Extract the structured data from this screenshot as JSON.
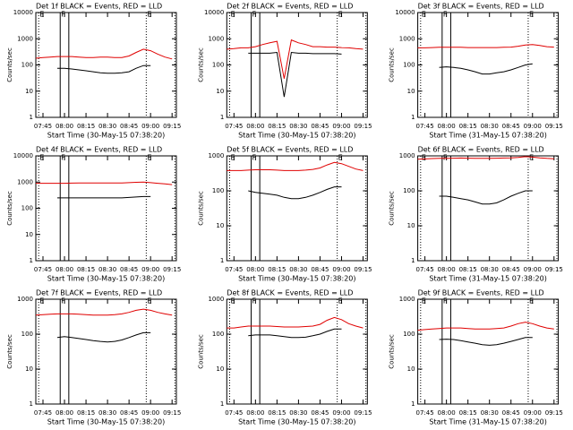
{
  "chart_data": [
    {
      "type": "line",
      "title": "Det 1f BLACK = Events, RED = LLD",
      "xlabel": "Start Time (30-May-15 07:38:20)",
      "ylabel": "Counts/sec",
      "scale": "log",
      "x": [
        "07:40",
        "07:45",
        "07:50",
        "07:55",
        "08:00",
        "08:05",
        "08:10",
        "08:15",
        "08:20",
        "08:25",
        "08:30",
        "08:35",
        "08:40",
        "08:45",
        "08:50",
        "08:55",
        "09:00",
        "09:05",
        "09:10",
        "09:15"
      ],
      "xlim": [
        "07:40",
        "09:18"
      ],
      "xticks": [
        "07:45",
        "08:00",
        "08:15",
        "08:30",
        "08:45",
        "09:00",
        "09:15"
      ],
      "ylim": [
        1,
        10000
      ],
      "yticks": [
        1,
        10,
        100,
        1000,
        10000
      ],
      "vlines": [
        {
          "x": "07:42",
          "label": "E",
          "style": "dotted"
        },
        {
          "x": "07:57",
          "label": "F",
          "style": "solid"
        },
        {
          "x": "08:03",
          "style": "solid"
        },
        {
          "x": "08:57",
          "label": "E",
          "style": "dotted"
        },
        {
          "x": "09:17",
          "style": "dotted"
        }
      ],
      "series": [
        {
          "color": "#000000",
          "values": [
            null,
            null,
            null,
            75,
            75,
            70,
            65,
            60,
            55,
            50,
            48,
            48,
            50,
            55,
            75,
            95,
            95,
            null,
            null,
            null
          ]
        },
        {
          "color": "#e00000",
          "values": [
            180,
            190,
            200,
            210,
            210,
            210,
            200,
            190,
            190,
            200,
            200,
            190,
            190,
            220,
            300,
            400,
            350,
            260,
            200,
            170
          ]
        }
      ]
    },
    {
      "type": "line",
      "title": "Det 2f BLACK = Events, RED = LLD",
      "xlabel": "Start Time (30-May-15 07:38:20)",
      "ylabel": "Counts/sec",
      "scale": "log",
      "x": [
        "07:40",
        "07:45",
        "07:50",
        "07:55",
        "08:00",
        "08:05",
        "08:10",
        "08:15",
        "08:20",
        "08:25",
        "08:30",
        "08:35",
        "08:40",
        "08:45",
        "08:50",
        "08:55",
        "09:00",
        "09:05",
        "09:10",
        "09:15"
      ],
      "xlim": [
        "07:40",
        "09:18"
      ],
      "xticks": [
        "07:45",
        "08:00",
        "08:15",
        "08:30",
        "08:45",
        "09:00",
        "09:15"
      ],
      "ylim": [
        1,
        10000
      ],
      "yticks": [
        1,
        10,
        100,
        1000,
        10000
      ],
      "vlines": [
        {
          "x": "07:42",
          "label": "E",
          "style": "dotted"
        },
        {
          "x": "07:57",
          "label": "F",
          "style": "solid"
        },
        {
          "x": "08:03",
          "style": "solid"
        },
        {
          "x": "08:57",
          "label": "E",
          "style": "dotted"
        },
        {
          "x": "09:17",
          "style": "dotted"
        }
      ],
      "series": [
        {
          "color": "#000000",
          "values": [
            null,
            null,
            null,
            280,
            280,
            280,
            280,
            300,
            6,
            300,
            280,
            280,
            270,
            270,
            270,
            270,
            260,
            null,
            null,
            null
          ]
        },
        {
          "color": "#e00000",
          "values": [
            400,
            420,
            450,
            450,
            500,
            600,
            700,
            800,
            30,
            900,
            700,
            600,
            500,
            500,
            480,
            480,
            460,
            450,
            420,
            400
          ]
        }
      ]
    },
    {
      "type": "line",
      "title": "Det 3f BLACK = Events, RED = LLD",
      "xlabel": "Start Time (31-May-15 07:38:20)",
      "ylabel": "Counts/sec",
      "scale": "log",
      "x": [
        "07:40",
        "07:45",
        "07:50",
        "07:55",
        "08:00",
        "08:05",
        "08:10",
        "08:15",
        "08:20",
        "08:25",
        "08:30",
        "08:35",
        "08:40",
        "08:45",
        "08:50",
        "08:55",
        "09:00",
        "09:05",
        "09:10",
        "09:15"
      ],
      "xlim": [
        "07:40",
        "09:18"
      ],
      "xticks": [
        "07:45",
        "08:00",
        "08:15",
        "08:30",
        "08:45",
        "09:00",
        "09:15"
      ],
      "ylim": [
        1,
        10000
      ],
      "yticks": [
        1,
        10,
        100,
        1000,
        10000
      ],
      "vlines": [
        {
          "x": "07:42",
          "label": "E",
          "style": "dotted"
        },
        {
          "x": "07:57",
          "label": "F",
          "style": "solid"
        },
        {
          "x": "08:03",
          "style": "solid"
        },
        {
          "x": "08:57",
          "label": "E",
          "style": "dotted"
        },
        {
          "x": "09:17",
          "style": "dotted"
        }
      ],
      "series": [
        {
          "color": "#000000",
          "values": [
            null,
            null,
            null,
            80,
            85,
            80,
            75,
            65,
            55,
            45,
            45,
            50,
            55,
            65,
            80,
            100,
            110,
            null,
            null,
            null
          ]
        },
        {
          "color": "#e00000",
          "values": [
            450,
            450,
            460,
            470,
            470,
            470,
            470,
            460,
            460,
            460,
            460,
            460,
            470,
            480,
            520,
            580,
            600,
            550,
            500,
            480
          ]
        }
      ]
    },
    {
      "type": "line",
      "title": "Det 4f BLACK = Events, RED = LLD",
      "xlabel": "Start Time (30-May-15 07:38:20)",
      "ylabel": "Counts/sec",
      "scale": "log",
      "x": [
        "07:40",
        "07:45",
        "07:50",
        "07:55",
        "08:00",
        "08:05",
        "08:10",
        "08:15",
        "08:20",
        "08:25",
        "08:30",
        "08:35",
        "08:40",
        "08:45",
        "08:50",
        "08:55",
        "09:00",
        "09:05",
        "09:10",
        "09:15"
      ],
      "xlim": [
        "07:40",
        "09:18"
      ],
      "xticks": [
        "07:45",
        "08:00",
        "08:15",
        "08:30",
        "08:45",
        "09:00",
        "09:15"
      ],
      "ylim": [
        1,
        10000
      ],
      "yticks": [
        1,
        10,
        100,
        1000,
        10000
      ],
      "vlines": [
        {
          "x": "07:42",
          "label": "E",
          "style": "dotted"
        },
        {
          "x": "07:57",
          "label": "F",
          "style": "solid"
        },
        {
          "x": "08:03",
          "style": "solid"
        },
        {
          "x": "08:57",
          "label": "E",
          "style": "dotted"
        },
        {
          "x": "09:17",
          "style": "dotted"
        }
      ],
      "series": [
        {
          "color": "#000000",
          "values": [
            null,
            null,
            null,
            250,
            250,
            250,
            250,
            250,
            250,
            250,
            250,
            250,
            250,
            260,
            270,
            280,
            280,
            null,
            null,
            null
          ]
        },
        {
          "color": "#e00000",
          "values": [
            900,
            900,
            900,
            900,
            900,
            910,
            920,
            920,
            920,
            930,
            920,
            920,
            930,
            950,
            980,
            1000,
            950,
            900,
            850,
            800
          ]
        }
      ]
    },
    {
      "type": "line",
      "title": "Det 5f BLACK = Events, RED = LLD",
      "xlabel": "Start Time (30-May-15 07:38:20)",
      "ylabel": "Counts/sec",
      "scale": "log",
      "x": [
        "07:40",
        "07:45",
        "07:50",
        "07:55",
        "08:00",
        "08:05",
        "08:10",
        "08:15",
        "08:20",
        "08:25",
        "08:30",
        "08:35",
        "08:40",
        "08:45",
        "08:50",
        "08:55",
        "09:00",
        "09:05",
        "09:10",
        "09:15"
      ],
      "xlim": [
        "07:40",
        "09:18"
      ],
      "xticks": [
        "07:45",
        "08:00",
        "08:15",
        "08:30",
        "08:45",
        "09:00",
        "09:15"
      ],
      "ylim": [
        1,
        1000
      ],
      "yticks": [
        1,
        10,
        100,
        1000
      ],
      "vlines": [
        {
          "x": "07:42",
          "label": "E",
          "style": "dotted"
        },
        {
          "x": "07:57",
          "label": "F",
          "style": "solid"
        },
        {
          "x": "08:03",
          "style": "solid"
        },
        {
          "x": "08:57",
          "label": "E",
          "style": "dotted"
        },
        {
          "x": "09:17",
          "style": "dotted"
        }
      ],
      "series": [
        {
          "color": "#000000",
          "values": [
            null,
            null,
            null,
            100,
            90,
            85,
            80,
            75,
            65,
            60,
            60,
            65,
            75,
            90,
            110,
            130,
            130,
            null,
            null,
            null
          ]
        },
        {
          "color": "#e00000",
          "values": [
            380,
            380,
            380,
            390,
            400,
            400,
            400,
            390,
            380,
            380,
            380,
            390,
            410,
            450,
            550,
            650,
            600,
            500,
            420,
            380
          ]
        }
      ]
    },
    {
      "type": "line",
      "title": "Det 6f BLACK = Events, RED = LLD",
      "xlabel": "Start Time (31-May-15 07:38:20)",
      "ylabel": "Counts/sec",
      "scale": "log",
      "x": [
        "07:40",
        "07:45",
        "07:50",
        "07:55",
        "08:00",
        "08:05",
        "08:10",
        "08:15",
        "08:20",
        "08:25",
        "08:30",
        "08:35",
        "08:40",
        "08:45",
        "08:50",
        "08:55",
        "09:00",
        "09:05",
        "09:10",
        "09:15"
      ],
      "xlim": [
        "07:40",
        "09:18"
      ],
      "xticks": [
        "07:45",
        "08:00",
        "08:15",
        "08:30",
        "08:45",
        "09:00",
        "09:15"
      ],
      "ylim": [
        1,
        1000
      ],
      "yticks": [
        1,
        10,
        100,
        1000
      ],
      "vlines": [
        {
          "x": "07:42",
          "label": "E",
          "style": "dotted"
        },
        {
          "x": "07:57",
          "label": "F",
          "style": "solid"
        },
        {
          "x": "08:03",
          "style": "solid"
        },
        {
          "x": "08:57",
          "label": "E",
          "style": "dotted"
        },
        {
          "x": "09:17",
          "style": "dotted"
        }
      ],
      "series": [
        {
          "color": "#000000",
          "values": [
            null,
            null,
            null,
            70,
            70,
            65,
            60,
            55,
            48,
            42,
            42,
            45,
            55,
            70,
            85,
            100,
            100,
            null,
            null,
            null
          ]
        },
        {
          "color": "#e00000",
          "values": [
            800,
            820,
            840,
            850,
            850,
            860,
            870,
            860,
            850,
            850,
            850,
            860,
            870,
            880,
            900,
            950,
            920,
            880,
            850,
            830
          ]
        }
      ]
    },
    {
      "type": "line",
      "title": "Det 7f BLACK = Events, RED = LLD",
      "xlabel": "Start Time (30-May-15 07:38:20)",
      "ylabel": "Counts/sec",
      "scale": "log",
      "x": [
        "07:40",
        "07:45",
        "07:50",
        "07:55",
        "08:00",
        "08:05",
        "08:10",
        "08:15",
        "08:20",
        "08:25",
        "08:30",
        "08:35",
        "08:40",
        "08:45",
        "08:50",
        "08:55",
        "09:00",
        "09:05",
        "09:10",
        "09:15"
      ],
      "xlim": [
        "07:40",
        "09:18"
      ],
      "xticks": [
        "07:45",
        "08:00",
        "08:15",
        "08:30",
        "08:45",
        "09:00",
        "09:15"
      ],
      "ylim": [
        1,
        1000
      ],
      "yticks": [
        1,
        10,
        100,
        1000
      ],
      "vlines": [
        {
          "x": "07:42",
          "label": "E",
          "style": "dotted"
        },
        {
          "x": "07:57",
          "label": "F",
          "style": "solid"
        },
        {
          "x": "08:03",
          "style": "solid"
        },
        {
          "x": "08:57",
          "label": "E",
          "style": "dotted"
        },
        {
          "x": "09:17",
          "style": "dotted"
        }
      ],
      "series": [
        {
          "color": "#000000",
          "values": [
            null,
            null,
            null,
            80,
            85,
            80,
            75,
            70,
            65,
            62,
            60,
            62,
            68,
            80,
            95,
            110,
            110,
            null,
            null,
            null
          ]
        },
        {
          "color": "#e00000",
          "values": [
            350,
            360,
            370,
            380,
            380,
            380,
            370,
            360,
            350,
            350,
            350,
            360,
            380,
            420,
            480,
            520,
            480,
            420,
            380,
            350
          ]
        }
      ]
    },
    {
      "type": "line",
      "title": "Det 8f BLACK = Events, RED = LLD",
      "xlabel": "Start Time (30-May-15 07:38:20)",
      "ylabel": "Counts/sec",
      "scale": "log",
      "x": [
        "07:40",
        "07:45",
        "07:50",
        "07:55",
        "08:00",
        "08:05",
        "08:10",
        "08:15",
        "08:20",
        "08:25",
        "08:30",
        "08:35",
        "08:40",
        "08:45",
        "08:50",
        "08:55",
        "09:00",
        "09:05",
        "09:10",
        "09:15"
      ],
      "xlim": [
        "07:40",
        "09:18"
      ],
      "xticks": [
        "07:45",
        "08:00",
        "08:15",
        "08:30",
        "08:45",
        "09:00",
        "09:15"
      ],
      "ylim": [
        1,
        1000
      ],
      "yticks": [
        1,
        10,
        100,
        1000
      ],
      "vlines": [
        {
          "x": "07:42",
          "label": "E",
          "style": "dotted"
        },
        {
          "x": "07:57",
          "label": "F",
          "style": "solid"
        },
        {
          "x": "08:03",
          "style": "solid"
        },
        {
          "x": "08:57",
          "label": "E",
          "style": "dotted"
        },
        {
          "x": "09:17",
          "style": "dotted"
        }
      ],
      "series": [
        {
          "color": "#000000",
          "values": [
            null,
            null,
            null,
            90,
            95,
            95,
            95,
            90,
            85,
            80,
            80,
            82,
            90,
            100,
            120,
            140,
            140,
            null,
            null,
            null
          ]
        },
        {
          "color": "#e00000",
          "values": [
            150,
            150,
            160,
            170,
            170,
            170,
            170,
            165,
            160,
            160,
            160,
            165,
            170,
            190,
            250,
            300,
            260,
            200,
            170,
            150
          ]
        }
      ]
    },
    {
      "type": "line",
      "title": "Det 9f BLACK = Events, RED = LLD",
      "xlabel": "Start Time (31-May-15 07:38:20)",
      "ylabel": "Counts/sec",
      "scale": "log",
      "x": [
        "07:40",
        "07:45",
        "07:50",
        "07:55",
        "08:00",
        "08:05",
        "08:10",
        "08:15",
        "08:20",
        "08:25",
        "08:30",
        "08:35",
        "08:40",
        "08:45",
        "08:50",
        "08:55",
        "09:00",
        "09:05",
        "09:10",
        "09:15"
      ],
      "xlim": [
        "07:40",
        "09:18"
      ],
      "xticks": [
        "07:45",
        "08:00",
        "08:15",
        "08:30",
        "08:45",
        "09:00",
        "09:15"
      ],
      "ylim": [
        1,
        1000
      ],
      "yticks": [
        1,
        10,
        100,
        1000
      ],
      "vlines": [
        {
          "x": "07:42",
          "label": "E",
          "style": "dotted"
        },
        {
          "x": "07:57",
          "label": "F",
          "style": "solid"
        },
        {
          "x": "08:03",
          "style": "solid"
        },
        {
          "x": "08:57",
          "label": "E",
          "style": "dotted"
        },
        {
          "x": "09:17",
          "style": "dotted"
        }
      ],
      "series": [
        {
          "color": "#000000",
          "values": [
            null,
            null,
            null,
            70,
            72,
            70,
            65,
            60,
            55,
            50,
            48,
            50,
            55,
            62,
            70,
            80,
            80,
            null,
            null,
            null
          ]
        },
        {
          "color": "#e00000",
          "values": [
            130,
            135,
            140,
            145,
            150,
            150,
            150,
            145,
            140,
            140,
            140,
            145,
            150,
            170,
            200,
            220,
            200,
            170,
            150,
            140
          ]
        }
      ]
    }
  ]
}
